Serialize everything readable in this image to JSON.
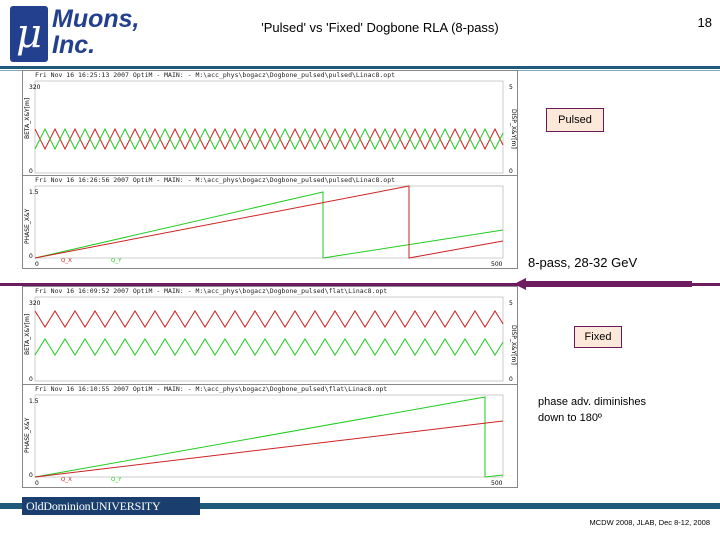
{
  "header": {
    "logo_mu": "μ",
    "logo_line1": "Muons,",
    "logo_line2": "Inc.",
    "title": "'Pulsed' vs 'Fixed' Dogbone RLA (8-pass)",
    "page_number": "18"
  },
  "panels": [
    {
      "header": "Fri Nov 16 16:25:13 2007    OptiM - MAIN:  - M:\\acc_phys\\bogacz\\Dogbone_pulsed\\pulsed\\Linac8.opt",
      "y_left": "BETA_X&Y[m]",
      "y_right": "DISP_X&Y[m]",
      "ytop": "320",
      "ybot": "0",
      "rtop": "5",
      "rbot": "0"
    },
    {
      "header": "Fri Nov 16 16:26:56 2007    OptiM - MAIN:  - M:\\acc_phys\\bogacz\\Dogbone_pulsed\\pulsed\\Linac8.opt",
      "y_left": "PHASE_X&Y",
      "ytop": "1.5",
      "ybot": "0",
      "x0": "0",
      "x1": "500",
      "leg_x": "Q_X",
      "leg_y": "Q_Y"
    },
    {
      "header": "Fri Nov 16 16:09:52 2007    OptiM - MAIN:  - M:\\acc_phys\\bogacz\\Dogbone_pulsed\\flat\\Linac8.opt",
      "y_left": "BETA_X&Y[m]",
      "y_right": "DISP_X&Y[m]",
      "ytop": "320",
      "ybot": "0",
      "rtop": "5",
      "rbot": "0"
    },
    {
      "header": "Fri Nov 16 16:10:55 2007    OptiM - MAIN:  - M:\\acc_phys\\bogacz\\Dogbone_pulsed\\flat\\Linac8.opt",
      "y_left": "PHASE_X&Y",
      "ytop": "1.5",
      "ybot": "0",
      "x0": "0",
      "x1": "500",
      "leg_x": "Q_X",
      "leg_y": "Q_Y"
    }
  ],
  "labels": {
    "pulsed": "Pulsed",
    "fixed": "Fixed",
    "pass_energy": "8-pass, 28-32 GeV",
    "note_line1": "phase adv. diminishes",
    "note_line2": "down to 180º"
  },
  "footer": {
    "university": "OldDominionUNIVERSITY",
    "conference": "MCDW 2008, JLAB, Dec 8-12, 2008"
  },
  "colors": {
    "brand_blue": "#23408e",
    "bar_blue": "#1f5a7a",
    "divider_purple": "#6e1b5f",
    "trace_red": "#cc2222",
    "trace_green": "#22cc22"
  }
}
